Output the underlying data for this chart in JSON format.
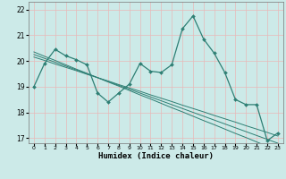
{
  "title": "",
  "xlabel": "Humidex (Indice chaleur)",
  "bg_color": "#cceae8",
  "grid_color": "#aad4d0",
  "line_color": "#2e7f74",
  "x_values": [
    0,
    1,
    2,
    3,
    4,
    5,
    6,
    7,
    8,
    9,
    10,
    11,
    12,
    13,
    14,
    15,
    16,
    17,
    18,
    19,
    20,
    21,
    22,
    23
  ],
  "y_main": [
    19.0,
    19.9,
    20.45,
    20.2,
    20.05,
    19.85,
    18.75,
    18.4,
    18.75,
    19.1,
    19.9,
    19.6,
    19.55,
    19.85,
    21.25,
    21.75,
    20.85,
    20.3,
    19.55,
    18.5,
    18.3,
    18.3,
    16.9,
    17.2
  ],
  "y_trend1": [
    20.35,
    20.18,
    20.02,
    19.85,
    19.68,
    19.52,
    19.35,
    19.18,
    19.02,
    18.85,
    18.68,
    18.52,
    18.35,
    18.18,
    18.02,
    17.85,
    17.68,
    17.52,
    17.35,
    17.18,
    17.02,
    16.85,
    16.68,
    16.52
  ],
  "y_trend2": [
    20.25,
    20.1,
    19.95,
    19.8,
    19.65,
    19.5,
    19.35,
    19.2,
    19.05,
    18.9,
    18.75,
    18.6,
    18.45,
    18.3,
    18.15,
    18.0,
    17.85,
    17.7,
    17.55,
    17.4,
    17.25,
    17.1,
    16.95,
    16.8
  ],
  "y_trend3": [
    20.15,
    20.02,
    19.88,
    19.75,
    19.62,
    19.48,
    19.35,
    19.22,
    19.08,
    18.95,
    18.82,
    18.68,
    18.55,
    18.42,
    18.28,
    18.15,
    18.02,
    17.88,
    17.75,
    17.62,
    17.48,
    17.35,
    17.22,
    17.08
  ],
  "ylim": [
    16.8,
    22.3
  ],
  "xlim": [
    -0.5,
    23.5
  ],
  "yticks": [
    17,
    18,
    19,
    20,
    21,
    22
  ],
  "xtick_labels": [
    "0",
    "1",
    "2",
    "3",
    "4",
    "5",
    "6",
    "7",
    "8",
    "9",
    "10",
    "11",
    "12",
    "13",
    "14",
    "15",
    "16",
    "17",
    "18",
    "19",
    "20",
    "21",
    "22",
    "23"
  ]
}
